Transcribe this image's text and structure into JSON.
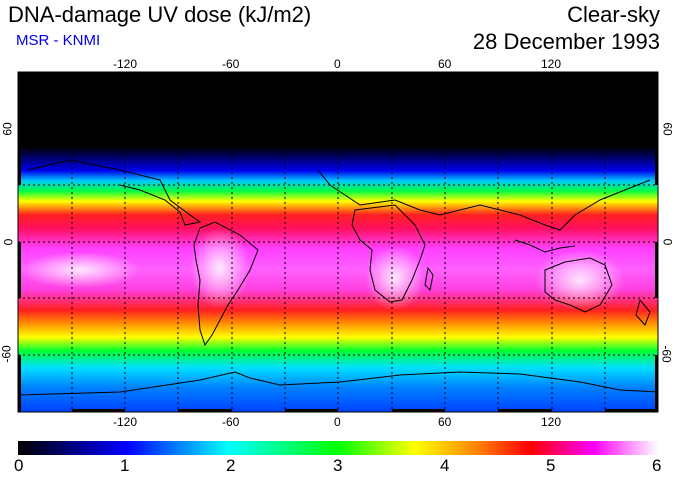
{
  "header": {
    "title": "DNA-damage UV dose (kJ/m2)",
    "credit": "MSR - KNMI",
    "mode": "Clear-sky",
    "date": "28 December 1993"
  },
  "map": {
    "projection": "equirectangular",
    "lon_range": [
      -180,
      180
    ],
    "lat_range": [
      -90,
      90
    ],
    "lon_ticks": [
      {
        "value": -120,
        "label": "-120"
      },
      {
        "value": -60,
        "label": "-60"
      },
      {
        "value": 0,
        "label": "0"
      },
      {
        "value": 60,
        "label": "60"
      },
      {
        "value": 120,
        "label": "120"
      }
    ],
    "lat_ticks": [
      {
        "value": 60,
        "label": "60"
      },
      {
        "value": 0,
        "label": "0"
      },
      {
        "value": -60,
        "label": "-60"
      }
    ]
  },
  "colorbar": {
    "min": 0,
    "max": 6,
    "labels": [
      "0",
      "1",
      "2",
      "3",
      "4",
      "5",
      "6"
    ],
    "colors": [
      "#000000",
      "#0000ff",
      "#00ffff",
      "#00ff00",
      "#ffff00",
      "#ff0000",
      "#ff00ff",
      "#ffffff"
    ]
  }
}
